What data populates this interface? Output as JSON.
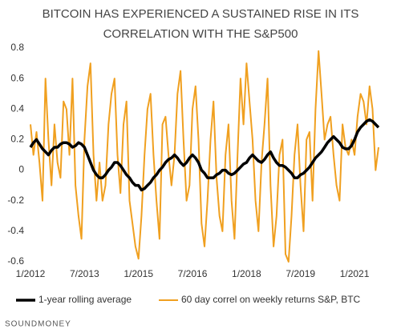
{
  "chart_data": {
    "type": "line",
    "title": [
      "BITCOIN HAS EXPERIENCED  A SUSTAINED RISE IN ITS",
      "CORRELATION WITH THE S&P500"
    ],
    "source": "SOUNDMONEY",
    "x": [
      "1/2012",
      "2/2012",
      "3/2012",
      "4/2012",
      "5/2012",
      "6/2012",
      "7/2012",
      "8/2012",
      "9/2012",
      "10/2012",
      "11/2012",
      "12/2012",
      "1/2013",
      "2/2013",
      "3/2013",
      "4/2013",
      "5/2013",
      "6/2013",
      "7/2013",
      "8/2013",
      "9/2013",
      "10/2013",
      "11/2013",
      "12/2013",
      "1/2014",
      "2/2014",
      "3/2014",
      "4/2014",
      "5/2014",
      "6/2014",
      "7/2014",
      "8/2014",
      "9/2014",
      "10/2014",
      "11/2014",
      "12/2014",
      "1/2015",
      "2/2015",
      "3/2015",
      "4/2015",
      "5/2015",
      "6/2015",
      "7/2015",
      "8/2015",
      "9/2015",
      "10/2015",
      "11/2015",
      "12/2015",
      "1/2016",
      "2/2016",
      "3/2016",
      "4/2016",
      "5/2016",
      "6/2016",
      "7/2016",
      "8/2016",
      "9/2016",
      "10/2016",
      "11/2016",
      "12/2016",
      "1/2017",
      "2/2017",
      "3/2017",
      "4/2017",
      "5/2017",
      "6/2017",
      "7/2017",
      "8/2017",
      "9/2017",
      "10/2017",
      "11/2017",
      "12/2017",
      "1/2018",
      "2/2018",
      "3/2018",
      "4/2018",
      "5/2018",
      "6/2018",
      "7/2018",
      "8/2018",
      "9/2018",
      "10/2018",
      "11/2018",
      "12/2018",
      "1/2019",
      "2/2019",
      "3/2019",
      "4/2019",
      "5/2019",
      "6/2019",
      "7/2019",
      "8/2019",
      "9/2019",
      "10/2019",
      "11/2019",
      "12/2019",
      "1/2020",
      "2/2020",
      "3/2020",
      "4/2020",
      "5/2020",
      "6/2020",
      "7/2020",
      "8/2020",
      "9/2020",
      "10/2020",
      "11/2020",
      "12/2020",
      "1/2021",
      "2/2021",
      "3/2021",
      "4/2021",
      "5/2021",
      "6/2021",
      "7/2021",
      "8/2021",
      "9/2021"
    ],
    "xticks": [
      "1/2012",
      "7/2013",
      "1/2015",
      "7/2016",
      "1/2018",
      "7/2019",
      "1/2021"
    ],
    "ylim": [
      -0.6,
      0.8
    ],
    "yticks": [
      0.8,
      0.6,
      0.4,
      0.2,
      0,
      -0.2,
      -0.4,
      -0.6
    ],
    "series": [
      {
        "name": "60 day correl on weekly returns S&P, BTC",
        "color": "#f0a020",
        "width": 2,
        "values": [
          0.3,
          0.1,
          0.25,
          0.05,
          -0.2,
          0.6,
          0.2,
          -0.1,
          0.3,
          0.05,
          -0.05,
          0.45,
          0.4,
          0.1,
          0.6,
          -0.1,
          -0.3,
          -0.45,
          0.2,
          0.55,
          0.7,
          0.1,
          -0.2,
          0.05,
          -0.2,
          -0.1,
          0.3,
          0.5,
          0.6,
          0.1,
          -0.15,
          0.3,
          0.45,
          -0.2,
          -0.35,
          -0.5,
          -0.58,
          -0.3,
          0.1,
          0.4,
          0.5,
          0.1,
          -0.2,
          -0.45,
          0.3,
          0.35,
          0.1,
          -0.1,
          0.1,
          0.5,
          0.65,
          0.2,
          -0.2,
          -0.1,
          0.4,
          0.55,
          0.2,
          -0.35,
          -0.5,
          -0.2,
          0.2,
          0.45,
          -0.05,
          -0.3,
          -0.4,
          0.1,
          0.3,
          -0.2,
          -0.45,
          0.1,
          0.6,
          0.3,
          0.7,
          0.45,
          0.2,
          -0.2,
          -0.4,
          0.05,
          0.3,
          0.6,
          -0.1,
          -0.5,
          -0.3,
          0.1,
          0.2,
          -0.55,
          -0.6,
          -0.3,
          0.1,
          0.3,
          -0.1,
          -0.4,
          0.2,
          0.25,
          -0.2,
          0.4,
          0.78,
          0.5,
          0.2,
          0.3,
          0.35,
          0.1,
          -0.1,
          -0.2,
          0.3,
          0.15,
          0.1,
          0.2,
          0.1,
          0.35,
          0.5,
          0.45,
          0.3,
          0.55,
          0.4,
          0.0,
          0.15
        ]
      },
      {
        "name": "1-year rolling average",
        "color": "#000000",
        "width": 3.5,
        "values": [
          0.15,
          0.18,
          0.2,
          0.17,
          0.14,
          0.12,
          0.1,
          0.13,
          0.15,
          0.15,
          0.17,
          0.18,
          0.18,
          0.17,
          0.15,
          0.16,
          0.18,
          0.17,
          0.15,
          0.1,
          0.05,
          0,
          -0.03,
          -0.05,
          -0.05,
          -0.03,
          0,
          0.02,
          0.05,
          0.05,
          0.03,
          0,
          -0.03,
          -0.05,
          -0.08,
          -0.1,
          -0.1,
          -0.13,
          -0.12,
          -0.1,
          -0.08,
          -0.05,
          -0.03,
          0,
          0.02,
          0.05,
          0.07,
          0.08,
          0.1,
          0.08,
          0.05,
          0.03,
          0.05,
          0.08,
          0.1,
          0.08,
          0.05,
          0,
          -0.02,
          -0.05,
          -0.05,
          -0.05,
          -0.03,
          -0.02,
          0,
          0,
          -0.02,
          -0.03,
          -0.02,
          0,
          0.02,
          0.04,
          0.05,
          0.08,
          0.1,
          0.08,
          0.06,
          0.05,
          0.07,
          0.1,
          0.12,
          0.08,
          0.05,
          0.03,
          0.03,
          0.02,
          0,
          -0.02,
          -0.05,
          -0.05,
          -0.03,
          -0.02,
          0,
          0.02,
          0.05,
          0.08,
          0.1,
          0.12,
          0.15,
          0.18,
          0.2,
          0.22,
          0.2,
          0.18,
          0.15,
          0.14,
          0.14,
          0.16,
          0.2,
          0.25,
          0.28,
          0.3,
          0.32,
          0.33,
          0.32,
          0.3,
          0.28
        ]
      }
    ],
    "legend_order": [
      1,
      0
    ]
  }
}
